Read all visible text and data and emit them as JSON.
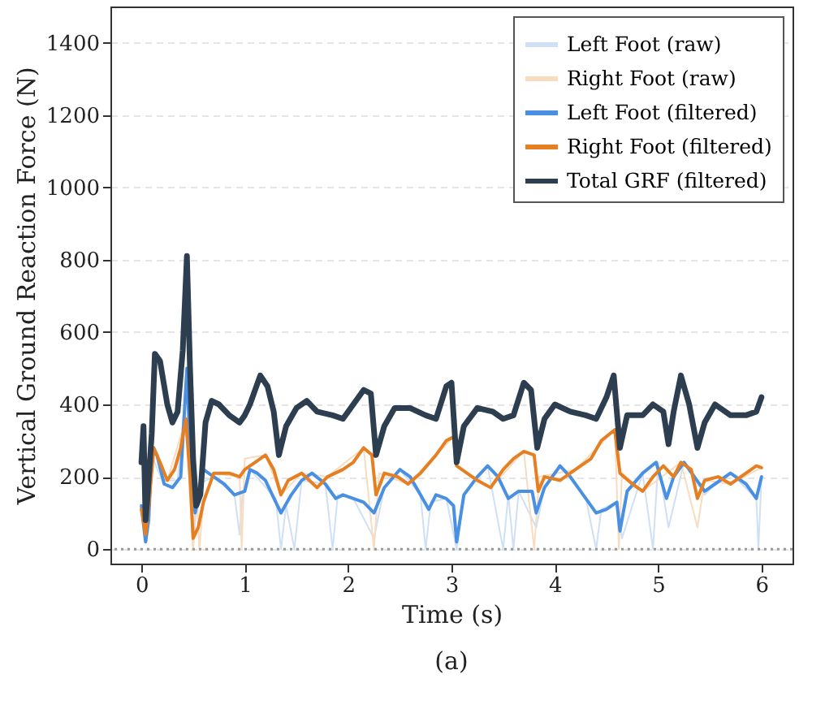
{
  "chart_data": {
    "type": "line",
    "xlabel": "Time (s)",
    "ylabel": "Vertical Ground Reaction Force (N)",
    "annotations": [
      "(a)"
    ],
    "xlim": [
      -0.3,
      6.3
    ],
    "xticks": [
      0,
      1,
      2,
      3,
      4,
      5,
      6
    ],
    "ylim": [
      -40,
      1500
    ],
    "yticks": [
      0,
      200,
      400,
      600,
      800,
      1000,
      1200,
      1400
    ],
    "grid": "y",
    "legend": "top right",
    "line_style": "solid",
    "ref_lines": [
      {
        "axis": "y",
        "value": 0,
        "color": "#999999",
        "line_style": "dotted"
      }
    ],
    "series": [
      {
        "name": "Left Foot (raw)",
        "color": "#cfe0f6",
        "x": [
          0,
          0.05,
          0.1,
          0.2,
          0.35,
          0.44,
          0.5,
          0.55,
          0.7,
          0.9,
          0.95,
          0.98,
          1.05,
          1.3,
          1.35,
          1.4,
          1.48,
          1.55,
          1.78,
          1.85,
          1.9,
          2.05,
          2.25,
          2.35,
          2.5,
          2.7,
          2.75,
          2.8,
          2.95,
          3.05,
          3.12,
          3.35,
          3.5,
          3.55,
          3.6,
          3.65,
          3.82,
          3.9,
          4.05,
          4.3,
          4.4,
          4.45,
          4.6,
          4.65,
          4.85,
          4.95,
          5.0,
          5.1,
          5.25,
          5.45,
          5.55,
          5.7,
          5.95,
          5.97,
          6.0
        ],
        "values": [
          120,
          20,
          260,
          190,
          190,
          480,
          0,
          180,
          200,
          150,
          40,
          160,
          220,
          140,
          0,
          120,
          0,
          190,
          180,
          0,
          150,
          140,
          30,
          170,
          220,
          150,
          0,
          130,
          140,
          0,
          150,
          230,
          0,
          150,
          0,
          160,
          60,
          170,
          230,
          140,
          0,
          110,
          130,
          30,
          210,
          0,
          240,
          60,
          240,
          150,
          180,
          210,
          140,
          0,
          200
        ]
      },
      {
        "name": "Right Foot (raw)",
        "color": "#f8dcc0",
        "x": [
          0.12,
          0.25,
          0.43,
          0.5,
          0.53,
          0.56,
          0.6,
          0.7,
          0.95,
          0.97,
          1.0,
          1.2,
          1.35,
          1.55,
          1.8,
          2.15,
          2.25,
          2.3,
          2.58,
          3.02,
          3.05,
          3.38,
          3.7,
          3.8,
          3.85,
          4.2,
          4.58,
          4.62,
          4.65,
          4.85,
          5.22,
          5.38,
          5.45,
          5.7,
          6.0
        ],
        "values": [
          280,
          190,
          360,
          0,
          200,
          0,
          130,
          210,
          200,
          0,
          250,
          260,
          150,
          210,
          200,
          280,
          0,
          210,
          180,
          310,
          230,
          170,
          270,
          0,
          200,
          220,
          330,
          0,
          210,
          160,
          240,
          60,
          190,
          180,
          225
        ]
      },
      {
        "name": "Left Foot (filtered)",
        "color": "#4a90e2",
        "x": [
          0,
          0.04,
          0.07,
          0.1,
          0.15,
          0.22,
          0.3,
          0.38,
          0.44,
          0.48,
          0.52,
          0.57,
          0.6,
          0.7,
          0.8,
          0.9,
          1.0,
          1.05,
          1.12,
          1.2,
          1.3,
          1.35,
          1.45,
          1.55,
          1.65,
          1.78,
          1.88,
          1.95,
          2.05,
          2.15,
          2.25,
          2.35,
          2.5,
          2.6,
          2.7,
          2.78,
          2.85,
          2.95,
          3.02,
          3.05,
          3.12,
          3.25,
          3.35,
          3.45,
          3.55,
          3.65,
          3.78,
          3.82,
          3.9,
          4.05,
          4.15,
          4.3,
          4.4,
          4.5,
          4.6,
          4.63,
          4.7,
          4.85,
          4.98,
          5.08,
          5.15,
          5.25,
          5.35,
          5.45,
          5.55,
          5.7,
          5.85,
          5.95,
          6.0
        ],
        "values": [
          120,
          20,
          80,
          270,
          260,
          180,
          170,
          200,
          500,
          200,
          100,
          170,
          220,
          200,
          180,
          150,
          160,
          220,
          210,
          190,
          130,
          100,
          150,
          190,
          210,
          180,
          140,
          150,
          140,
          130,
          100,
          170,
          220,
          200,
          150,
          110,
          150,
          140,
          120,
          20,
          150,
          200,
          230,
          200,
          140,
          160,
          160,
          100,
          170,
          230,
          200,
          140,
          100,
          110,
          130,
          50,
          160,
          210,
          240,
          140,
          200,
          240,
          200,
          160,
          180,
          210,
          180,
          140,
          200
        ]
      },
      {
        "name": "Right Foot (filtered)",
        "color": "#e67e22",
        "x": [
          0,
          0.04,
          0.07,
          0.12,
          0.18,
          0.25,
          0.32,
          0.38,
          0.43,
          0.47,
          0.5,
          0.55,
          0.6,
          0.7,
          0.85,
          0.95,
          1.0,
          1.1,
          1.2,
          1.28,
          1.35,
          1.42,
          1.55,
          1.7,
          1.8,
          1.95,
          2.05,
          2.15,
          2.23,
          2.27,
          2.35,
          2.48,
          2.58,
          2.7,
          2.85,
          2.95,
          3.02,
          3.05,
          3.1,
          3.25,
          3.38,
          3.5,
          3.6,
          3.7,
          3.8,
          3.84,
          3.9,
          4.05,
          4.2,
          4.35,
          4.45,
          4.58,
          4.63,
          4.75,
          4.85,
          4.95,
          5.05,
          5.15,
          5.22,
          5.32,
          5.38,
          5.45,
          5.58,
          5.7,
          5.85,
          5.95,
          6.0
        ],
        "values": [
          110,
          40,
          120,
          280,
          240,
          190,
          220,
          280,
          360,
          200,
          30,
          60,
          130,
          210,
          210,
          200,
          220,
          240,
          260,
          220,
          150,
          190,
          210,
          170,
          200,
          220,
          240,
          280,
          260,
          150,
          210,
          200,
          180,
          210,
          260,
          300,
          310,
          230,
          220,
          190,
          170,
          220,
          250,
          270,
          260,
          160,
          200,
          190,
          220,
          250,
          300,
          330,
          210,
          180,
          160,
          200,
          230,
          200,
          240,
          220,
          140,
          190,
          200,
          180,
          210,
          230,
          225
        ]
      },
      {
        "name": "Total GRF (filtered)",
        "color": "#2c3e50",
        "x": [
          0,
          0.02,
          0.04,
          0.06,
          0.1,
          0.13,
          0.18,
          0.25,
          0.3,
          0.35,
          0.4,
          0.44,
          0.47,
          0.5,
          0.53,
          0.57,
          0.62,
          0.68,
          0.75,
          0.85,
          0.95,
          1.0,
          1.05,
          1.15,
          1.22,
          1.28,
          1.33,
          1.4,
          1.5,
          1.6,
          1.7,
          1.85,
          1.95,
          2.05,
          2.15,
          2.22,
          2.27,
          2.35,
          2.45,
          2.6,
          2.75,
          2.85,
          2.95,
          3.0,
          3.05,
          3.12,
          3.25,
          3.4,
          3.5,
          3.6,
          3.7,
          3.77,
          3.83,
          3.9,
          4.0,
          4.15,
          4.3,
          4.4,
          4.5,
          4.57,
          4.63,
          4.7,
          4.85,
          4.95,
          5.05,
          5.1,
          5.15,
          5.22,
          5.3,
          5.38,
          5.45,
          5.55,
          5.7,
          5.85,
          5.95,
          6.0
        ],
        "values": [
          240,
          340,
          80,
          150,
          320,
          540,
          520,
          400,
          350,
          380,
          550,
          810,
          500,
          250,
          120,
          150,
          350,
          410,
          400,
          370,
          350,
          370,
          400,
          480,
          450,
          380,
          260,
          340,
          390,
          410,
          380,
          370,
          360,
          400,
          440,
          430,
          260,
          340,
          390,
          390,
          370,
          360,
          450,
          460,
          240,
          340,
          390,
          380,
          360,
          370,
          460,
          440,
          280,
          360,
          400,
          380,
          370,
          360,
          420,
          480,
          280,
          370,
          370,
          400,
          380,
          290,
          380,
          480,
          400,
          280,
          350,
          400,
          370,
          370,
          380,
          420
        ]
      }
    ]
  }
}
